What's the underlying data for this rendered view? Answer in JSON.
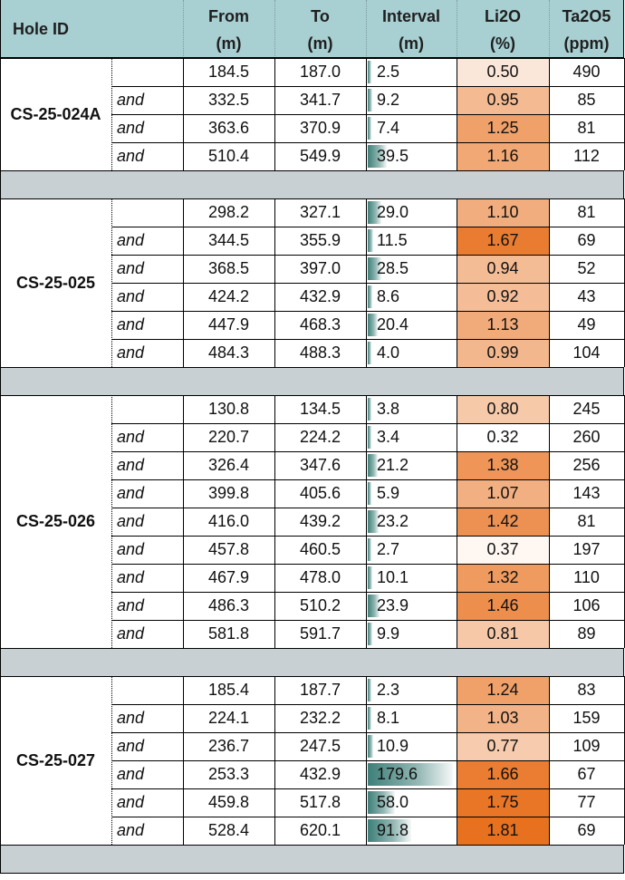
{
  "headers": {
    "hole_id": "Hole ID",
    "from": [
      "From",
      "(m)"
    ],
    "to": [
      "To",
      "(m)"
    ],
    "interval": [
      "Interval",
      "(m)"
    ],
    "li2o": [
      "Li2O",
      "(%)"
    ],
    "ta2o5": [
      "Ta2O5",
      "(ppm)"
    ]
  },
  "colors": {
    "header_bg": "#a8cfd2",
    "spacer_bg": "#c9d0d4",
    "interval_bar": "#3e7f79",
    "li2o_high": "#e8711f",
    "li2o_low": "#ffffff"
  },
  "interval_max": 179.6,
  "li2o_min": 0.32,
  "li2o_max": 1.81,
  "holes": [
    {
      "hole_id": "CS-25-024A",
      "rows": [
        {
          "label": "",
          "from": "184.5",
          "to": "187.0",
          "interval": "2.5",
          "li2o": "0.50",
          "ta2o5": "490"
        },
        {
          "label": "and",
          "from": "332.5",
          "to": "341.7",
          "interval": "9.2",
          "li2o": "0.95",
          "ta2o5": "85"
        },
        {
          "label": "and",
          "from": "363.6",
          "to": "370.9",
          "interval": "7.4",
          "li2o": "1.25",
          "ta2o5": "81"
        },
        {
          "label": "and",
          "from": "510.4",
          "to": "549.9",
          "interval": "39.5",
          "li2o": "1.16",
          "ta2o5": "112"
        }
      ]
    },
    {
      "hole_id": "CS-25-025",
      "rows": [
        {
          "label": "",
          "from": "298.2",
          "to": "327.1",
          "interval": "29.0",
          "li2o": "1.10",
          "ta2o5": "81"
        },
        {
          "label": "and",
          "from": "344.5",
          "to": "355.9",
          "interval": "11.5",
          "li2o": "1.67",
          "ta2o5": "69"
        },
        {
          "label": "and",
          "from": "368.5",
          "to": "397.0",
          "interval": "28.5",
          "li2o": "0.94",
          "ta2o5": "52"
        },
        {
          "label": "and",
          "from": "424.2",
          "to": "432.9",
          "interval": "8.6",
          "li2o": "0.92",
          "ta2o5": "43"
        },
        {
          "label": "and",
          "from": "447.9",
          "to": "468.3",
          "interval": "20.4",
          "li2o": "1.13",
          "ta2o5": "49"
        },
        {
          "label": "and",
          "from": "484.3",
          "to": "488.3",
          "interval": "4.0",
          "li2o": "0.99",
          "ta2o5": "104"
        }
      ]
    },
    {
      "hole_id": "CS-25-026",
      "rows": [
        {
          "label": "",
          "from": "130.8",
          "to": "134.5",
          "interval": "3.8",
          "li2o": "0.80",
          "ta2o5": "245"
        },
        {
          "label": "and",
          "from": "220.7",
          "to": "224.2",
          "interval": "3.4",
          "li2o": "0.32",
          "ta2o5": "260"
        },
        {
          "label": "and",
          "from": "326.4",
          "to": "347.6",
          "interval": "21.2",
          "li2o": "1.38",
          "ta2o5": "256"
        },
        {
          "label": "and",
          "from": "399.8",
          "to": "405.6",
          "interval": "5.9",
          "li2o": "1.07",
          "ta2o5": "143"
        },
        {
          "label": "and",
          "from": "416.0",
          "to": "439.2",
          "interval": "23.2",
          "li2o": "1.42",
          "ta2o5": "81"
        },
        {
          "label": "and",
          "from": "457.8",
          "to": "460.5",
          "interval": "2.7",
          "li2o": "0.37",
          "ta2o5": "197"
        },
        {
          "label": "and",
          "from": "467.9",
          "to": "478.0",
          "interval": "10.1",
          "li2o": "1.32",
          "ta2o5": "110"
        },
        {
          "label": "and",
          "from": "486.3",
          "to": "510.2",
          "interval": "23.9",
          "li2o": "1.46",
          "ta2o5": "106"
        },
        {
          "label": "and",
          "from": "581.8",
          "to": "591.7",
          "interval": "9.9",
          "li2o": "0.81",
          "ta2o5": "89"
        }
      ]
    },
    {
      "hole_id": "CS-25-027",
      "rows": [
        {
          "label": "",
          "from": "185.4",
          "to": "187.7",
          "interval": "2.3",
          "li2o": "1.24",
          "ta2o5": "83"
        },
        {
          "label": "and",
          "from": "224.1",
          "to": "232.2",
          "interval": "8.1",
          "li2o": "1.03",
          "ta2o5": "159"
        },
        {
          "label": "and",
          "from": "236.7",
          "to": "247.5",
          "interval": "10.9",
          "li2o": "0.77",
          "ta2o5": "109"
        },
        {
          "label": "and",
          "from": "253.3",
          "to": "432.9",
          "interval": "179.6",
          "li2o": "1.66",
          "ta2o5": "67"
        },
        {
          "label": "and",
          "from": "459.8",
          "to": "517.8",
          "interval": "58.0",
          "li2o": "1.75",
          "ta2o5": "77"
        },
        {
          "label": "and",
          "from": "528.4",
          "to": "620.1",
          "interval": "91.8",
          "li2o": "1.81",
          "ta2o5": "69"
        }
      ]
    }
  ]
}
